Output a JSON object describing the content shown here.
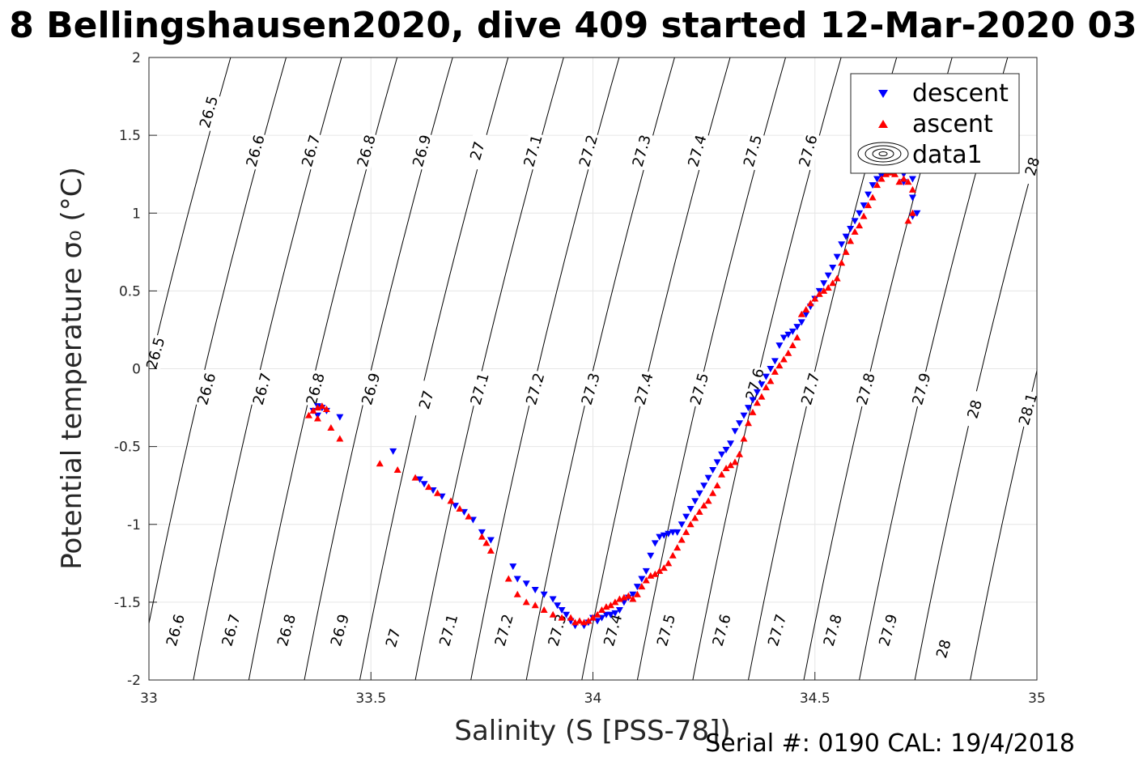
{
  "chart_data": {
    "type": "scatter",
    "title": "8 Bellingshausen2020, dive 409 started 12-Mar-2020 03",
    "xlabel": "Salinity (S [PSS-78])",
    "ylabel": "Potential temperature σ₀ (°C)",
    "xlim": [
      33,
      35
    ],
    "ylim": [
      -2,
      2
    ],
    "xticks": [
      33,
      33.5,
      34,
      34.5,
      35
    ],
    "xtick_labels": [
      "33",
      "33.5",
      "34",
      "34.5",
      "35"
    ],
    "yticks": [
      -2,
      -1.5,
      -1,
      -0.5,
      0,
      0.5,
      1,
      1.5,
      2
    ],
    "ytick_labels": [
      "-2",
      "-1.5",
      "-1",
      "-0.5",
      "0",
      "0.5",
      "1",
      "1.5",
      "2"
    ],
    "grid": true,
    "legend": {
      "placement": "top-right",
      "entries": [
        "descent",
        "ascent",
        "data1"
      ]
    },
    "footer": "Serial #: 0190  CAL: 19/4/2018",
    "contour_lines": [
      {
        "level": 26.5,
        "s_at_m2": 32.85,
        "slope": 0.0675
      },
      {
        "level": 26.6,
        "s_at_m2": 32.975,
        "slope": 0.0675
      },
      {
        "level": 26.7,
        "s_at_m2": 33.1,
        "slope": 0.0675
      },
      {
        "level": 26.8,
        "s_at_m2": 33.225,
        "slope": 0.0675
      },
      {
        "level": 26.9,
        "s_at_m2": 33.35,
        "slope": 0.0675
      },
      {
        "level": 27,
        "s_at_m2": 33.475,
        "slope": 0.0675
      },
      {
        "level": 27.1,
        "s_at_m2": 33.6,
        "slope": 0.0675
      },
      {
        "level": 27.2,
        "s_at_m2": 33.725,
        "slope": 0.0675
      },
      {
        "level": 27.3,
        "s_at_m2": 33.85,
        "slope": 0.0675
      },
      {
        "level": 27.4,
        "s_at_m2": 33.975,
        "slope": 0.0675
      },
      {
        "level": 27.5,
        "s_at_m2": 34.1,
        "slope": 0.0675
      },
      {
        "level": 27.6,
        "s_at_m2": 34.225,
        "slope": 0.0675
      },
      {
        "level": 27.7,
        "s_at_m2": 34.35,
        "slope": 0.0675
      },
      {
        "level": 27.8,
        "s_at_m2": 34.475,
        "slope": 0.0675
      },
      {
        "level": 27.9,
        "s_at_m2": 34.6,
        "slope": 0.0675
      },
      {
        "level": 28,
        "s_at_m2": 34.725,
        "slope": 0.0675
      },
      {
        "level": 28.1,
        "s_at_m2": 34.85,
        "slope": 0.0675
      }
    ],
    "contour_labels": [
      {
        "text": "26.5",
        "s": 33.135,
        "t": 1.65
      },
      {
        "text": "26.6",
        "s": 33.24,
        "t": 1.4
      },
      {
        "text": "26.7",
        "s": 33.365,
        "t": 1.4
      },
      {
        "text": "26.8",
        "s": 33.49,
        "t": 1.4
      },
      {
        "text": "26.9",
        "s": 33.615,
        "t": 1.4
      },
      {
        "text": "27",
        "s": 33.74,
        "t": 1.4
      },
      {
        "text": "27.1",
        "s": 33.865,
        "t": 1.4
      },
      {
        "text": "27.2",
        "s": 33.99,
        "t": 1.4
      },
      {
        "text": "27.3",
        "s": 34.11,
        "t": 1.4
      },
      {
        "text": "27.4",
        "s": 34.235,
        "t": 1.4
      },
      {
        "text": "27.5",
        "s": 34.36,
        "t": 1.4
      },
      {
        "text": "27.6",
        "s": 34.485,
        "t": 1.4
      },
      {
        "text": "28",
        "s": 34.99,
        "t": 1.3
      },
      {
        "text": "26.5",
        "s": 33.015,
        "t": 0.1
      },
      {
        "text": "26.6",
        "s": 33.13,
        "t": -0.13
      },
      {
        "text": "26.7",
        "s": 33.255,
        "t": -0.13
      },
      {
        "text": "26.8",
        "s": 33.375,
        "t": -0.13
      },
      {
        "text": "26.9",
        "s": 33.5,
        "t": -0.13
      },
      {
        "text": "27",
        "s": 33.625,
        "t": -0.2
      },
      {
        "text": "27.1",
        "s": 33.745,
        "t": -0.13
      },
      {
        "text": "27.2",
        "s": 33.87,
        "t": -0.13
      },
      {
        "text": "27.3",
        "s": 33.995,
        "t": -0.13
      },
      {
        "text": "27.4",
        "s": 34.115,
        "t": -0.13
      },
      {
        "text": "27.5",
        "s": 34.24,
        "t": -0.13
      },
      {
        "text": "27.6",
        "s": 34.365,
        "t": -0.1
      },
      {
        "text": "27.7",
        "s": 34.49,
        "t": -0.13
      },
      {
        "text": "27.8",
        "s": 34.615,
        "t": -0.13
      },
      {
        "text": "27.9",
        "s": 34.74,
        "t": -0.13
      },
      {
        "text": "28",
        "s": 34.86,
        "t": -0.26
      },
      {
        "text": "28.1",
        "s": 34.98,
        "t": -0.26
      },
      {
        "text": "26.6",
        "s": 33.06,
        "t": -1.68
      },
      {
        "text": "26.7",
        "s": 33.185,
        "t": -1.68
      },
      {
        "text": "26.8",
        "s": 33.31,
        "t": -1.68
      },
      {
        "text": "26.9",
        "s": 33.43,
        "t": -1.68
      },
      {
        "text": "27",
        "s": 33.55,
        "t": -1.73
      },
      {
        "text": "27.1",
        "s": 33.675,
        "t": -1.68
      },
      {
        "text": "27.2",
        "s": 33.8,
        "t": -1.68
      },
      {
        "text": "27.3",
        "s": 33.92,
        "t": -1.68
      },
      {
        "text": "27.4",
        "s": 34.045,
        "t": -1.68
      },
      {
        "text": "27.5",
        "s": 34.165,
        "t": -1.68
      },
      {
        "text": "27.6",
        "s": 34.29,
        "t": -1.68
      },
      {
        "text": "27.7",
        "s": 34.415,
        "t": -1.68
      },
      {
        "text": "27.8",
        "s": 34.54,
        "t": -1.68
      },
      {
        "text": "27.9",
        "s": 34.665,
        "t": -1.68
      },
      {
        "text": "28",
        "s": 34.79,
        "t": -1.8
      }
    ],
    "series": [
      {
        "name": "descent",
        "color": "#0000ff",
        "marker": "triangle-down",
        "points": [
          [
            34.69,
            1.3
          ],
          [
            34.7,
            1.25
          ],
          [
            34.72,
            1.22
          ],
          [
            34.72,
            1.1
          ],
          [
            34.73,
            1.0
          ],
          [
            34.72,
            0.98
          ],
          [
            34.7,
            1.2
          ],
          [
            34.68,
            1.28
          ],
          [
            34.66,
            1.26
          ],
          [
            34.65,
            1.24
          ],
          [
            34.64,
            1.22
          ],
          [
            34.63,
            1.18
          ],
          [
            34.62,
            1.12
          ],
          [
            34.61,
            1.05
          ],
          [
            34.6,
            1.0
          ],
          [
            34.59,
            0.95
          ],
          [
            34.58,
            0.9
          ],
          [
            34.57,
            0.85
          ],
          [
            34.56,
            0.8
          ],
          [
            34.55,
            0.72
          ],
          [
            34.54,
            0.65
          ],
          [
            34.53,
            0.6
          ],
          [
            34.52,
            0.55
          ],
          [
            34.51,
            0.5
          ],
          [
            34.5,
            0.45
          ],
          [
            34.49,
            0.4
          ],
          [
            34.48,
            0.35
          ],
          [
            34.47,
            0.3
          ],
          [
            34.46,
            0.27
          ],
          [
            34.45,
            0.24
          ],
          [
            34.44,
            0.22
          ],
          [
            34.43,
            0.2
          ],
          [
            34.42,
            0.15
          ],
          [
            34.41,
            0.05
          ],
          [
            34.4,
            0.0
          ],
          [
            34.39,
            -0.05
          ],
          [
            34.38,
            -0.1
          ],
          [
            34.37,
            -0.15
          ],
          [
            34.36,
            -0.2
          ],
          [
            34.35,
            -0.25
          ],
          [
            34.34,
            -0.3
          ],
          [
            34.33,
            -0.35
          ],
          [
            34.32,
            -0.4
          ],
          [
            34.31,
            -0.48
          ],
          [
            34.3,
            -0.52
          ],
          [
            34.29,
            -0.55
          ],
          [
            34.28,
            -0.6
          ],
          [
            34.27,
            -0.65
          ],
          [
            34.26,
            -0.7
          ],
          [
            34.25,
            -0.75
          ],
          [
            34.24,
            -0.8
          ],
          [
            34.23,
            -0.85
          ],
          [
            34.22,
            -0.9
          ],
          [
            34.21,
            -0.95
          ],
          [
            34.2,
            -1.0
          ],
          [
            34.19,
            -1.05
          ],
          [
            34.18,
            -1.05
          ],
          [
            34.17,
            -1.06
          ],
          [
            34.16,
            -1.07
          ],
          [
            34.15,
            -1.08
          ],
          [
            34.14,
            -1.12
          ],
          [
            34.13,
            -1.2
          ],
          [
            34.12,
            -1.3
          ],
          [
            34.11,
            -1.35
          ],
          [
            34.1,
            -1.4
          ],
          [
            34.09,
            -1.45
          ],
          [
            34.08,
            -1.47
          ],
          [
            34.07,
            -1.5
          ],
          [
            34.06,
            -1.55
          ],
          [
            34.05,
            -1.57
          ],
          [
            34.04,
            -1.58
          ],
          [
            34.03,
            -1.58
          ],
          [
            34.02,
            -1.6
          ],
          [
            34.01,
            -1.62
          ],
          [
            34.0,
            -1.6
          ],
          [
            33.99,
            -1.63
          ],
          [
            33.98,
            -1.65
          ],
          [
            33.96,
            -1.65
          ],
          [
            33.95,
            -1.62
          ],
          [
            33.94,
            -1.58
          ],
          [
            33.93,
            -1.55
          ],
          [
            33.92,
            -1.52
          ],
          [
            33.91,
            -1.48
          ],
          [
            33.89,
            -1.45
          ],
          [
            33.87,
            -1.42
          ],
          [
            33.85,
            -1.38
          ],
          [
            33.83,
            -1.35
          ],
          [
            33.82,
            -1.27
          ],
          [
            33.77,
            -1.1
          ],
          [
            33.75,
            -1.05
          ],
          [
            33.73,
            -0.97
          ],
          [
            33.71,
            -0.92
          ],
          [
            33.69,
            -0.88
          ],
          [
            33.66,
            -0.82
          ],
          [
            33.64,
            -0.78
          ],
          [
            33.62,
            -0.74
          ],
          [
            33.61,
            -0.71
          ],
          [
            33.55,
            -0.53
          ],
          [
            33.43,
            -0.31
          ],
          [
            33.4,
            -0.27
          ],
          [
            33.39,
            -0.25
          ],
          [
            33.38,
            -0.24
          ],
          [
            33.37,
            -0.27
          ],
          [
            33.38,
            -0.3
          ]
        ]
      },
      {
        "name": "ascent",
        "color": "#ff0000",
        "marker": "triangle-up",
        "points": [
          [
            34.72,
            1.0
          ],
          [
            34.71,
            0.95
          ],
          [
            34.72,
            1.15
          ],
          [
            34.71,
            1.2
          ],
          [
            34.7,
            1.22
          ],
          [
            34.69,
            1.2
          ],
          [
            34.68,
            1.25
          ],
          [
            34.67,
            1.26
          ],
          [
            34.66,
            1.25
          ],
          [
            34.65,
            1.22
          ],
          [
            34.64,
            1.18
          ],
          [
            34.63,
            1.1
          ],
          [
            34.62,
            1.05
          ],
          [
            34.61,
            0.98
          ],
          [
            34.6,
            0.92
          ],
          [
            34.59,
            0.88
          ],
          [
            34.58,
            0.82
          ],
          [
            34.57,
            0.75
          ],
          [
            34.56,
            0.68
          ],
          [
            34.55,
            0.58
          ],
          [
            34.54,
            0.55
          ],
          [
            34.53,
            0.52
          ],
          [
            34.52,
            0.5
          ],
          [
            34.51,
            0.48
          ],
          [
            34.5,
            0.45
          ],
          [
            34.49,
            0.42
          ],
          [
            34.48,
            0.38
          ],
          [
            34.47,
            0.35
          ],
          [
            34.46,
            0.2
          ],
          [
            34.45,
            0.15
          ],
          [
            34.44,
            0.1
          ],
          [
            34.43,
            0.06
          ],
          [
            34.42,
            0.02
          ],
          [
            34.41,
            -0.02
          ],
          [
            34.4,
            -0.08
          ],
          [
            34.39,
            -0.12
          ],
          [
            34.38,
            -0.18
          ],
          [
            34.37,
            -0.22
          ],
          [
            34.36,
            -0.28
          ],
          [
            34.35,
            -0.35
          ],
          [
            34.34,
            -0.45
          ],
          [
            34.33,
            -0.55
          ],
          [
            34.32,
            -0.6
          ],
          [
            34.31,
            -0.62
          ],
          [
            34.3,
            -0.64
          ],
          [
            34.29,
            -0.68
          ],
          [
            34.28,
            -0.75
          ],
          [
            34.27,
            -0.8
          ],
          [
            34.26,
            -0.85
          ],
          [
            34.25,
            -0.88
          ],
          [
            34.24,
            -0.92
          ],
          [
            34.23,
            -0.96
          ],
          [
            34.22,
            -1.0
          ],
          [
            34.21,
            -1.05
          ],
          [
            34.2,
            -1.1
          ],
          [
            34.19,
            -1.15
          ],
          [
            34.18,
            -1.2
          ],
          [
            34.17,
            -1.25
          ],
          [
            34.16,
            -1.28
          ],
          [
            34.15,
            -1.3
          ],
          [
            34.14,
            -1.32
          ],
          [
            34.13,
            -1.33
          ],
          [
            34.12,
            -1.36
          ],
          [
            34.11,
            -1.4
          ],
          [
            34.1,
            -1.45
          ],
          [
            34.09,
            -1.48
          ],
          [
            34.08,
            -1.46
          ],
          [
            34.07,
            -1.47
          ],
          [
            34.06,
            -1.48
          ],
          [
            34.05,
            -1.5
          ],
          [
            34.04,
            -1.52
          ],
          [
            34.03,
            -1.53
          ],
          [
            34.02,
            -1.55
          ],
          [
            34.01,
            -1.58
          ],
          [
            34.0,
            -1.6
          ],
          [
            33.99,
            -1.62
          ],
          [
            33.98,
            -1.63
          ],
          [
            33.97,
            -1.62
          ],
          [
            33.96,
            -1.63
          ],
          [
            33.95,
            -1.6
          ],
          [
            33.93,
            -1.6
          ],
          [
            33.91,
            -1.58
          ],
          [
            33.89,
            -1.55
          ],
          [
            33.87,
            -1.52
          ],
          [
            33.85,
            -1.5
          ],
          [
            33.83,
            -1.45
          ],
          [
            33.81,
            -1.35
          ],
          [
            33.77,
            -1.17
          ],
          [
            33.76,
            -1.12
          ],
          [
            33.75,
            -1.08
          ],
          [
            33.72,
            -0.95
          ],
          [
            33.7,
            -0.9
          ],
          [
            33.68,
            -0.85
          ],
          [
            33.65,
            -0.8
          ],
          [
            33.63,
            -0.76
          ],
          [
            33.6,
            -0.7
          ],
          [
            33.56,
            -0.65
          ],
          [
            33.52,
            -0.61
          ],
          [
            33.43,
            -0.45
          ],
          [
            33.41,
            -0.38
          ],
          [
            33.4,
            -0.26
          ],
          [
            33.39,
            -0.24
          ],
          [
            33.38,
            -0.25
          ],
          [
            33.37,
            -0.27
          ],
          [
            33.36,
            -0.3
          ],
          [
            33.38,
            -0.32
          ]
        ]
      }
    ]
  }
}
